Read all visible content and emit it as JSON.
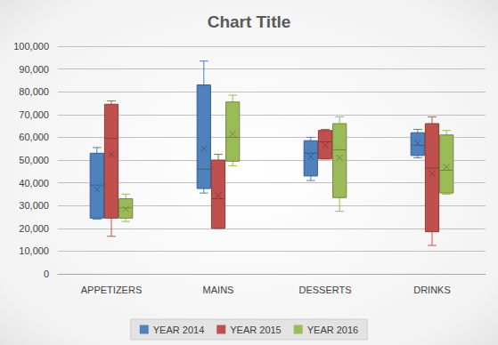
{
  "chart_data": {
    "type": "boxplot",
    "title": "Chart Title",
    "categories": [
      "APPETIZERS",
      "MAINS",
      "DESSERTS",
      "DRINKS"
    ],
    "series": [
      {
        "name": "YEAR 2014",
        "color": "#4f81bd",
        "values": [
          [
            24000,
            24500,
            39000,
            53000,
            55500
          ],
          [
            35500,
            37500,
            46000,
            83000,
            93500
          ],
          [
            41000,
            43000,
            53000,
            58500,
            60000
          ],
          [
            51000,
            52000,
            56500,
            62000,
            63500
          ]
        ],
        "means": [
          37000,
          55000,
          51500,
          57500
        ]
      },
      {
        "name": "YEAR 2015",
        "color": "#c0504d",
        "values": [
          [
            16500,
            24500,
            59500,
            74500,
            76000
          ],
          [
            20000,
            20000,
            33000,
            50000,
            52500
          ],
          [
            50500,
            50500,
            58000,
            63000,
            63500
          ],
          [
            12500,
            18500,
            46500,
            66000,
            69000
          ]
        ],
        "means": [
          52500,
          34500,
          56500,
          44000
        ]
      },
      {
        "name": "YEAR 2016",
        "color": "#9bbb59",
        "values": [
          [
            23000,
            24500,
            29000,
            33000,
            35000
          ],
          [
            47500,
            49500,
            60000,
            75500,
            78500
          ],
          [
            27500,
            33500,
            54500,
            66000,
            69000
          ],
          [
            35000,
            35500,
            45500,
            61000,
            63000
          ]
        ],
        "means": [
          28500,
          61500,
          51000,
          47000
        ]
      }
    ],
    "ylim": [
      0,
      100000
    ],
    "yticks": [
      0,
      {
        "value": 10000,
        "label": "10,000"
      },
      {
        "value": 20000,
        "label": "20,000"
      },
      {
        "value": 30000,
        "label": "30,000"
      },
      {
        "value": 40000,
        "label": "40,000"
      },
      {
        "value": 50000,
        "label": "50,000"
      },
      {
        "value": 60000,
        "label": "60,000"
      },
      {
        "value": 70000,
        "label": "70,000"
      },
      {
        "value": 80000,
        "label": "80,000"
      },
      {
        "value": 90000,
        "label": "90,000"
      },
      {
        "value": 100000,
        "label": "100,000"
      }
    ],
    "grid": true,
    "legend": "bottom",
    "marker": "x"
  }
}
